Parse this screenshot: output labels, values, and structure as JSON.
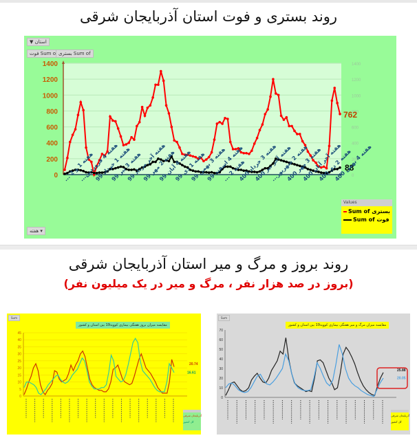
{
  "page": {
    "title_top": "روند بستری و فوت استان آذربایجان شرقی",
    "title_bottom": "روند بروز و مرگ و میر استان آذربایجان شرقی",
    "subtitle_bottom": "(بروز در صد هزار نفر ، مرگ و میر در یک میلیون نفر)"
  },
  "top_chart": {
    "filter_button": "استان",
    "filter_icon": "filter-icon",
    "field_buttons": [
      "Sum of فوت",
      "Sum of بستری"
    ],
    "axis_button": "هفته",
    "legend_header": "Values",
    "legend": [
      {
        "label": "Sum of بستری",
        "color": "#ff0000"
      },
      {
        "label": "Sum of فوت",
        "color": "#000000"
      }
    ],
    "end_labels": {
      "hospitalized": "762",
      "deaths": "88"
    }
  },
  "bottom_left_chart": {
    "corner_button": "Sum",
    "title": "مقایسه میزان بروز هفتگی بیماری کووید19 بین استان و کشور",
    "end_labels": [
      "20.74",
      "16.61"
    ],
    "legend": [
      {
        "label": "آذربایجان شرقی",
        "color": "#cc3300"
      },
      {
        "label": "کل کشور",
        "color": "#33cc99"
      }
    ]
  },
  "bottom_right_chart": {
    "corner_button": "Sum",
    "title": "مقایسه میزان مرگ و میر هفتگی بیماری کووید19 بین استان و کشور",
    "end_labels": [
      "25.88",
      "20.05"
    ],
    "legend": [
      {
        "label": "آذربایجان شرقی",
        "color": "#222222"
      },
      {
        "label": "کل کشور",
        "color": "#4a9fe0"
      }
    ],
    "highlight_color": "#dd2222"
  },
  "chart_data": [
    {
      "type": "line",
      "title": "روند بستری و فوت استان آذربایجان شرقی",
      "xlabel": "",
      "ylabel": "",
      "ylim": [
        0,
        1400
      ],
      "yticks": [
        0,
        200,
        400,
        600,
        800,
        1000,
        1200,
        1400
      ],
      "grid": true,
      "legend_position": "bottom-right",
      "categories_labels": [
        "هفته 1 و 2 ...",
        "هفته 4 فروردین...",
        "هفته 1 خرداد 99",
        "هفته 3 تیر 99",
        "هفته آخر مرداد 99",
        "هفته 2 مهر 99",
        "هفته 4 آبان 99",
        "هفته 1 دی 99",
        "هفته 3 بهمن 99",
        "هفته 4 اسفند 99",
        "هفته 2 ...",
        "هفته 3 خرداد 400",
        "هفته آخر تیر 400",
        "هفته 2 شهریور...",
        "هفته 3 مهر 400",
        "هفته آخر آبان 400",
        "هفته 2 دی 400",
        "هفته 4 بهمن 400"
      ],
      "series": [
        {
          "name": "Sum of بستری",
          "color": "#ff0000",
          "values": [
            60,
            210,
            410,
            500,
            570,
            750,
            910,
            810,
            340,
            190,
            160,
            0,
            110,
            180,
            260,
            240,
            290,
            730,
            680,
            670,
            580,
            480,
            370,
            380,
            400,
            470,
            440,
            610,
            660,
            850,
            740,
            840,
            870,
            970,
            1130,
            1130,
            1300,
            1180,
            870,
            770,
            600,
            430,
            410,
            340,
            260,
            250,
            250,
            240,
            230,
            220,
            200,
            210,
            170,
            190,
            220,
            280,
            440,
            640,
            660,
            640,
            710,
            700,
            410,
            320,
            320,
            330,
            280,
            270,
            270,
            260,
            300,
            390,
            460,
            560,
            630,
            760,
            820,
            980,
            1200,
            1020,
            1000,
            740,
            690,
            720,
            610,
            610,
            550,
            510,
            510,
            420,
            370,
            290,
            240,
            180,
            150,
            100,
            90,
            100,
            80,
            360,
            930,
            1090,
            900,
            762
          ]
        },
        {
          "name": "Sum of فوت",
          "color": "#000000",
          "values": [
            10,
            20,
            40,
            50,
            60,
            60,
            55,
            45,
            30,
            25,
            30,
            20,
            20,
            25,
            25,
            30,
            40,
            70,
            70,
            80,
            90,
            100,
            95,
            70,
            60,
            60,
            65,
            50,
            70,
            90,
            100,
            120,
            130,
            160,
            160,
            200,
            190,
            170,
            180,
            170,
            230,
            160,
            160,
            140,
            120,
            100,
            90,
            60,
            50,
            40,
            40,
            30,
            30,
            30,
            25,
            30,
            20,
            20,
            30,
            70,
            100,
            100,
            100,
            80,
            70,
            60,
            60,
            50,
            50,
            40,
            35,
            35,
            30,
            40,
            60,
            80,
            80,
            110,
            140,
            200,
            190,
            180,
            170,
            160,
            150,
            140,
            130,
            120,
            110,
            100,
            90,
            70,
            60,
            50,
            40,
            35,
            25,
            20,
            15,
            30,
            50,
            70,
            70,
            88
          ]
        }
      ],
      "end_labels": {
        "Sum of بستری": 762,
        "Sum of فوت": 88
      }
    },
    {
      "type": "line",
      "title": "مقایسه میزان بروز هفتگی بیماری کووید19 بین استان و کشور",
      "ylim": [
        0,
        45
      ],
      "yticks": [
        0,
        5,
        10,
        15,
        20,
        25,
        30,
        35,
        40,
        45
      ],
      "grid": true,
      "legend_position": "bottom-right",
      "series": [
        {
          "name": "آذربایجان شرقی",
          "color": "#cc3300",
          "values": [
            1,
            5,
            10,
            14,
            20,
            23,
            18,
            8,
            3,
            1,
            4,
            6,
            9,
            18,
            17,
            12,
            10,
            11,
            12,
            16,
            22,
            18,
            22,
            25,
            30,
            32,
            28,
            20,
            12,
            8,
            6,
            5,
            4,
            4,
            3,
            3,
            5,
            10,
            19,
            20,
            22,
            17,
            12,
            10,
            9,
            8,
            9,
            14,
            20,
            26,
            30,
            25,
            20,
            18,
            16,
            13,
            10,
            6,
            4,
            2,
            2,
            2,
            10,
            26,
            20.74
          ]
        },
        {
          "name": "کل کشور",
          "color": "#33cc99",
          "values": [
            6,
            10,
            10,
            9,
            8,
            6,
            2,
            1,
            3,
            5,
            8,
            10,
            12,
            14,
            15,
            12,
            10,
            9,
            10,
            12,
            15,
            17,
            19,
            23,
            27,
            25,
            18,
            10,
            7,
            5,
            5,
            5,
            6,
            6,
            8,
            17,
            29,
            25,
            14,
            12,
            10,
            11,
            15,
            22,
            30,
            38,
            41,
            38,
            25,
            18,
            16,
            14,
            12,
            9,
            6,
            4,
            3,
            3,
            3,
            10,
            23,
            20,
            16.61
          ]
        }
      ],
      "end_labels": [
        20.74,
        16.61
      ]
    },
    {
      "type": "line",
      "title": "مقایسه میزان مرگ و میر هفتگی بیماری کووید19 بین استان و کشور",
      "ylim": [
        0,
        70
      ],
      "yticks": [
        0,
        10,
        20,
        30,
        40,
        50,
        60,
        70
      ],
      "grid": false,
      "legend_position": "bottom-right",
      "series": [
        {
          "name": "آذربایجان شرقی",
          "color": "#222222",
          "values": [
            2,
            8,
            15,
            16,
            12,
            8,
            6,
            7,
            10,
            18,
            22,
            25,
            20,
            16,
            15,
            20,
            28,
            33,
            38,
            48,
            45,
            62,
            40,
            25,
            15,
            12,
            10,
            8,
            6,
            7,
            6,
            20,
            38,
            39,
            36,
            28,
            20,
            15,
            8,
            10,
            25,
            45,
            52,
            48,
            42,
            35,
            26,
            18,
            12,
            8,
            5,
            3,
            2,
            12,
            20,
            25.88
          ]
        },
        {
          "name": "کل کشور",
          "color": "#4a9fe0",
          "values": [
            10,
            14,
            15,
            12,
            8,
            6,
            5,
            6,
            10,
            16,
            22,
            24,
            18,
            14,
            13,
            16,
            20,
            25,
            30,
            45,
            38,
            24,
            14,
            10,
            8,
            7,
            7,
            8,
            20,
            36,
            30,
            22,
            15,
            12,
            18,
            35,
            55,
            45,
            30,
            20,
            15,
            12,
            10,
            7,
            5,
            3,
            2,
            1,
            8,
            15,
            20.05
          ]
        }
      ],
      "end_labels": [
        25.88,
        20.05
      ]
    }
  ]
}
